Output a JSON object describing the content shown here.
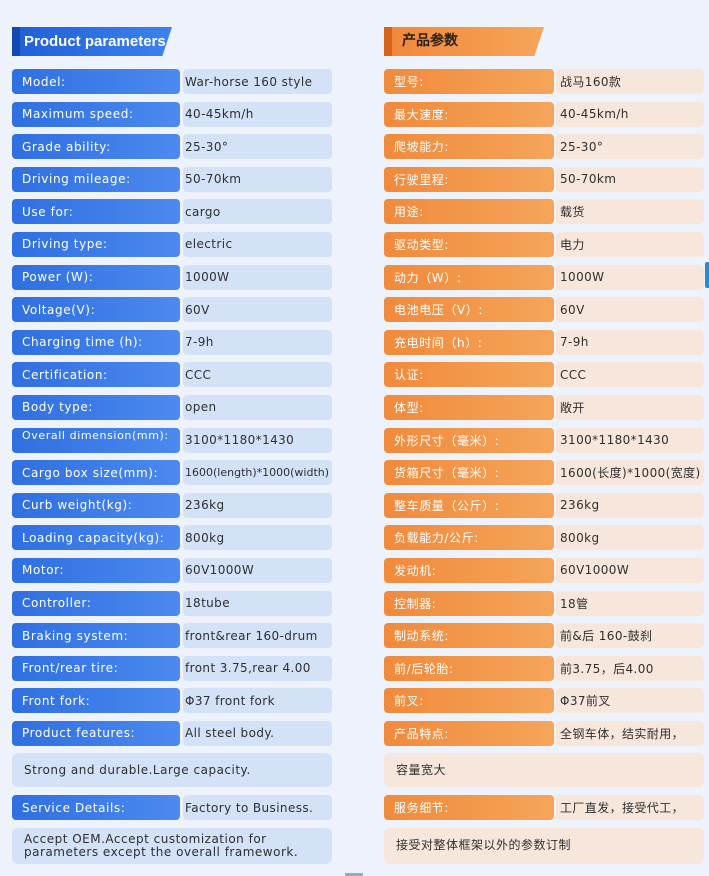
{
  "left": {
    "title": "Product parameters",
    "rows": [
      {
        "label": "Model:",
        "value": "War-horse 160 style"
      },
      {
        "label": "Maximum speed:",
        "value": "40-45km/h"
      },
      {
        "label": "Grade ability:",
        "value": "25-30°"
      },
      {
        "label": "Driving mileage:",
        "value": "50-70km"
      },
      {
        "label": "Use for:",
        "value": "cargo"
      },
      {
        "label": "Driving type:",
        "value": "electric"
      },
      {
        "label": "Power (W):",
        "value": "1000W"
      },
      {
        "label": "Voltage(V):",
        "value": "60V"
      },
      {
        "label": "Charging time (h):",
        "value": "7-9h"
      },
      {
        "label": "Certification:",
        "value": "CCC"
      },
      {
        "label": "Body type:",
        "value": "open"
      },
      {
        "label": "Overall dimension(mm):",
        "value": "3100*1180*1430"
      },
      {
        "label": "Cargo box size(mm):",
        "value": "1600(length)*1000(width)"
      },
      {
        "label": "Curb weight(kg):",
        "value": "236kg"
      },
      {
        "label": "Loading capacity(kg):",
        "value": "800kg"
      },
      {
        "label": "Motor:",
        "value": "60V1000W"
      },
      {
        "label": "Controller:",
        "value": "18tube"
      },
      {
        "label": "Braking system:",
        "value": "front&rear 160-drum"
      },
      {
        "label": "Front/rear tire:",
        "value": "front 3.75,rear 4.00"
      },
      {
        "label": "Front fork:",
        "value": "Φ37 front fork"
      },
      {
        "label": "Product features:",
        "value": "All steel body."
      }
    ],
    "features_note": "Strong and durable.Large capacity.",
    "service_label": "Service Details:",
    "service_value": "Factory to Business.",
    "service_note": "Accept OEM.Accept customization for parameters except the overall framework."
  },
  "right": {
    "title": "产品参数",
    "rows": [
      {
        "label": "型号:",
        "value": "战马160款"
      },
      {
        "label": "最大速度:",
        "value": "40-45km/h"
      },
      {
        "label": "爬坡能力:",
        "value": "25-30°"
      },
      {
        "label": "行驶里程:",
        "value": "50-70km"
      },
      {
        "label": "用途:",
        "value": "载货"
      },
      {
        "label": "驱动类型:",
        "value": "电力"
      },
      {
        "label": "动力（W）:",
        "value": "1000W"
      },
      {
        "label": "电池电压（V）:",
        "value": "60V"
      },
      {
        "label": "充电时间（h）:",
        "value": "7-9h"
      },
      {
        "label": "认证:",
        "value": "CCC"
      },
      {
        "label": "体型:",
        "value": "敞开"
      },
      {
        "label": "外形尺寸（毫米）:",
        "value": "3100*1180*1430"
      },
      {
        "label": "货箱尺寸（毫米）:",
        "value": "1600(长度)*1000(宽度)"
      },
      {
        "label": "整车质量（公斤）:",
        "value": "236kg"
      },
      {
        "label": "负载能力/公斤:",
        "value": "800kg"
      },
      {
        "label": "发动机:",
        "value": "60V1000W"
      },
      {
        "label": "控制器:",
        "value": "18管"
      },
      {
        "label": "制动系统:",
        "value": "前&后 160-鼓刹"
      },
      {
        "label": "前/后轮胎:",
        "value": "前3.75，后4.00"
      },
      {
        "label": "前叉:",
        "value": "Φ37前叉"
      },
      {
        "label": "产品特点:",
        "value": "全钢车体，结实耐用，"
      }
    ],
    "features_note": "容量宽大",
    "service_label": "服务细节:",
    "service_value": "工厂直发，接受代工，",
    "service_note": "接受对整体框架以外的参数订制"
  }
}
